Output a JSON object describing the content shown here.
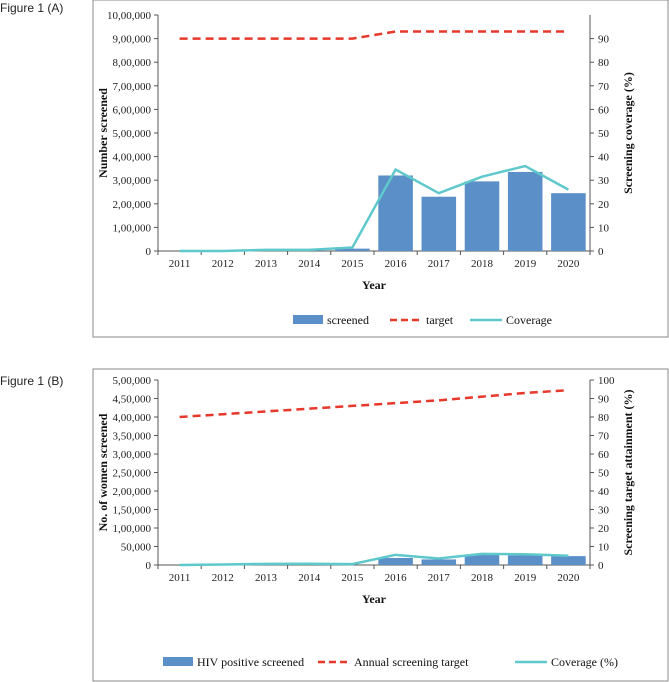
{
  "figure_labels": [
    "Figure 1 (A)",
    "Figure 1 (B)"
  ],
  "colors": {
    "bar": "#5b8fc7",
    "target": "#e8372b",
    "coverage": "#5fc8cc",
    "frame": "#888888",
    "axis": "#555555"
  },
  "chart_data": [
    {
      "type": "bar",
      "categories": [
        "2011",
        "2012",
        "2013",
        "2014",
        "2015",
        "2016",
        "2017",
        "2018",
        "2019",
        "2020"
      ],
      "series": [
        {
          "name": "screened",
          "type": "bar",
          "axis": "left",
          "values": [
            0,
            0,
            1000,
            1000,
            10000,
            320000,
            230000,
            295000,
            335000,
            245000
          ]
        },
        {
          "name": "target",
          "type": "line-dashed",
          "axis": "right",
          "values": [
            90,
            90,
            90,
            90,
            90,
            93,
            93,
            93,
            93,
            93
          ]
        },
        {
          "name": "Coverage",
          "type": "line",
          "axis": "right",
          "values": [
            0,
            0,
            0.5,
            0.5,
            1.5,
            34.5,
            24.5,
            31.5,
            36,
            26
          ]
        }
      ],
      "xlabel": "Year",
      "ylabel": "Number screened",
      "y2label": "Screening coverage (%)",
      "ylim": [
        0,
        1000000
      ],
      "y2lim": [
        0,
        100
      ],
      "ytick_labels": [
        "0",
        "1,00,000",
        "2,00,000",
        "3,00,000",
        "4,00,000",
        "5,00,000",
        "6,00,000",
        "7,00,000",
        "8,00,000",
        "9,00,000",
        "10,00,000"
      ],
      "y2tick_labels": [
        "0",
        "10",
        "20",
        "30",
        "40",
        "50",
        "60",
        "70",
        "80",
        "90"
      ],
      "legend": [
        "screened",
        "target",
        "Coverage"
      ],
      "legend_position": "bottom",
      "grid": false
    },
    {
      "type": "bar",
      "categories": [
        "2011",
        "2012",
        "2013",
        "2014",
        "2015",
        "2016",
        "2017",
        "2018",
        "2019",
        "2020"
      ],
      "series": [
        {
          "name": "HIV positive screened",
          "type": "bar",
          "axis": "left",
          "values": [
            0,
            0,
            0,
            0,
            0,
            19000,
            15000,
            27000,
            26000,
            24000
          ]
        },
        {
          "name": "Annual screening target",
          "type": "line-dashed",
          "axis": "right",
          "values": [
            80,
            81.5,
            83,
            84.5,
            86,
            87.5,
            89,
            91,
            93,
            94.5
          ]
        },
        {
          "name": "Coverage (%)",
          "type": "line",
          "axis": "right",
          "values": [
            0,
            0.3,
            0.6,
            0.7,
            0.5,
            5.5,
            3.5,
            6,
            5.8,
            5
          ]
        }
      ],
      "xlabel": "Year",
      "ylabel": "No. of women screened",
      "y2label": "Screening target attainment (%)",
      "ylim": [
        0,
        500000
      ],
      "y2lim": [
        0,
        100
      ],
      "ytick_labels": [
        "0",
        "50,000",
        "1,00,000",
        "1,50,000",
        "2,00,000",
        "2,50,000",
        "3,00,000",
        "3,50,000",
        "4,00,000",
        "4,50,000",
        "5,00,000"
      ],
      "y2tick_labels": [
        "0",
        "10",
        "20",
        "30",
        "40",
        "50",
        "60",
        "70",
        "80",
        "90",
        "100"
      ],
      "legend": [
        "HIV positive screened",
        "Annual screening target",
        "Coverage (%)"
      ],
      "legend_position": "bottom",
      "grid": false
    }
  ]
}
